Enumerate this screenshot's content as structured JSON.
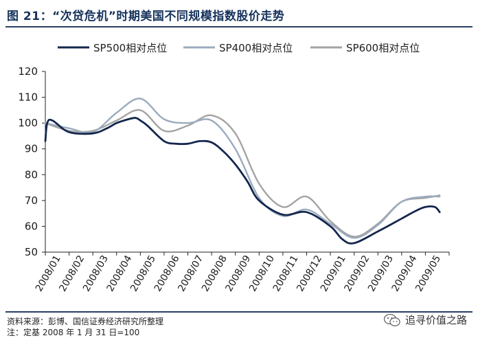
{
  "title": "图 21：“次贷危机”时期美国不同规模指数股价走势",
  "footer": {
    "source": "资料来源：彭博、国信证券经济研究所整理",
    "note": "注：定基 2008 年 1 月 31 日=100"
  },
  "watermark": {
    "text": "追寻价值之路",
    "icon": "wechat-icon"
  },
  "colors": {
    "sp500": "#13264d",
    "sp400": "#9aabbd",
    "sp600": "#a3a3a3",
    "axis": "#222222"
  },
  "chart_data": {
    "type": "line",
    "title": "",
    "xlabel": "",
    "ylabel": "",
    "ylim": [
      50,
      120
    ],
    "yticks": [
      50,
      60,
      70,
      80,
      90,
      100,
      110,
      120
    ],
    "categories": [
      "2008/01",
      "2008/02",
      "2008/03",
      "2008/04",
      "2008/05",
      "2008/06",
      "2008/07",
      "2008/08",
      "2008/09",
      "2008/10",
      "2008/11",
      "2008/12",
      "2009/01",
      "2009/02",
      "2009/03",
      "2009/04",
      "2009/05"
    ],
    "legend_position": "top",
    "series": [
      {
        "name": "SP500相对点位",
        "key": "sp500",
        "x": [
          0,
          0.08,
          0.3,
          1.0,
          2.0,
          2.6,
          3.0,
          3.5,
          3.8,
          4.0,
          4.3,
          5.0,
          5.5,
          6.0,
          6.5,
          7.0,
          7.5,
          8.0,
          8.5,
          9.0,
          10.0,
          11.0,
          12.0,
          12.5,
          13.0,
          14.0,
          15.0,
          15.6,
          16.0,
          16.4,
          16.6
        ],
        "values": [
          93,
          100,
          101,
          96.5,
          96,
          98,
          100,
          101.5,
          102,
          101,
          99,
          93,
          92,
          92,
          93,
          92.5,
          89,
          84,
          77.5,
          70,
          64.5,
          65.5,
          60,
          55,
          53.5,
          58,
          63,
          66,
          67.5,
          67.5,
          65.5
        ]
      },
      {
        "name": "SP400相对点位",
        "key": "sp400",
        "x": [
          0,
          1.0,
          2.0,
          3.0,
          4.0,
          5.0,
          6.0,
          7.0,
          8.0,
          9.0,
          10.0,
          11.0,
          12.0,
          13.0,
          14.0,
          15.0,
          16.0,
          16.6
        ],
        "values": [
          100,
          98,
          96.5,
          104,
          109.5,
          101.5,
          100,
          101,
          90,
          71,
          64,
          66.5,
          61,
          55.5,
          60.5,
          69.5,
          71.5,
          71.5
        ]
      },
      {
        "name": "SP600相对点位",
        "key": "sp600",
        "x": [
          0,
          1.0,
          2.0,
          3.0,
          4.0,
          5.0,
          6.0,
          7.0,
          8.0,
          9.0,
          10.0,
          11.0,
          12.0,
          13.0,
          14.0,
          15.0,
          16.0,
          16.6
        ],
        "values": [
          100,
          97,
          97,
          101,
          105,
          97,
          99,
          103,
          96,
          76.5,
          67.5,
          71.5,
          62,
          56,
          61,
          69.5,
          71,
          72
        ]
      }
    ]
  }
}
